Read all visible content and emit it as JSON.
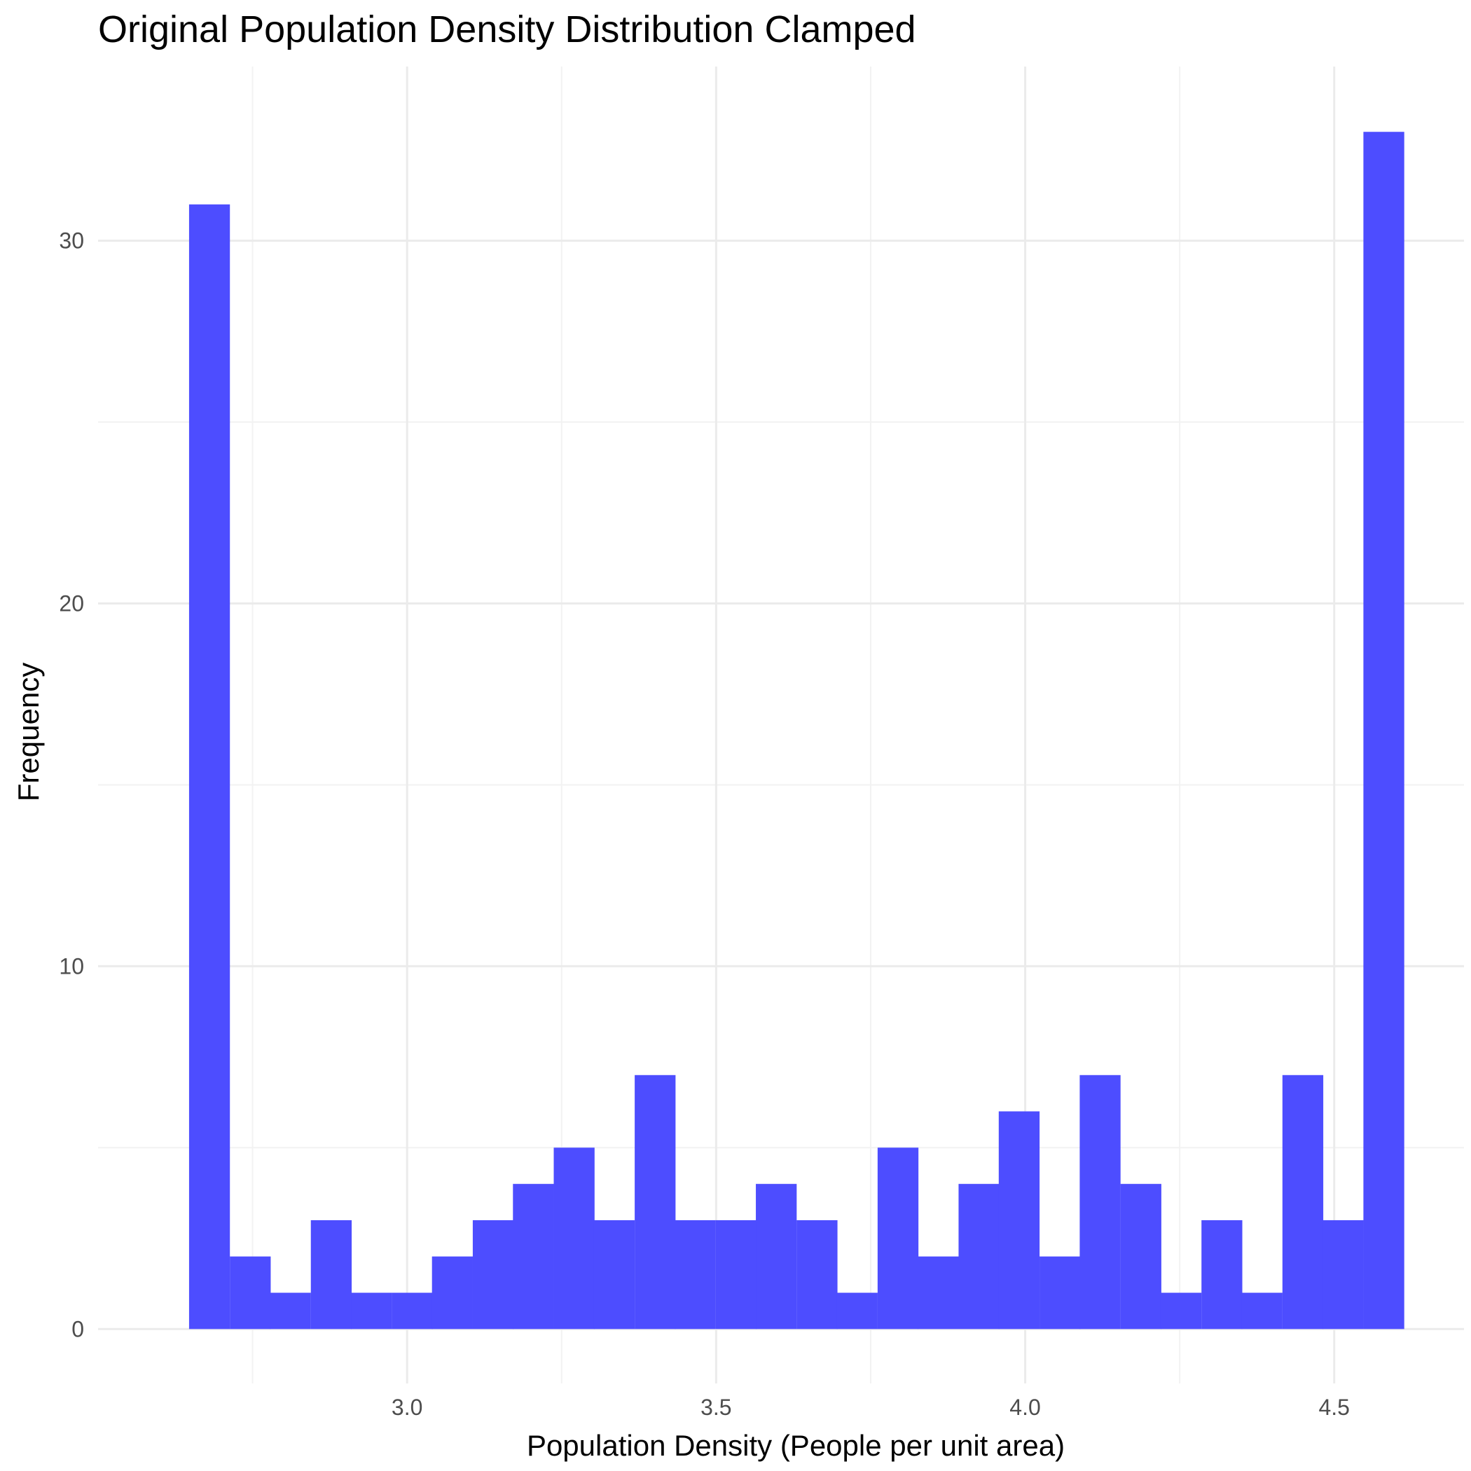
{
  "chart_data": {
    "type": "bar",
    "title": "Original Population Density Distribution Clamped",
    "xlabel": "Population Density (People per unit area)",
    "ylabel": "Frequency",
    "bar_color": "#4d4dff",
    "grid": true,
    "legend": "none",
    "xlim": [
      2.5,
      4.71
    ],
    "ylim": [
      -1.5,
      34.8
    ],
    "x_ticks": [
      {
        "value": 3.0,
        "label": "3.0"
      },
      {
        "value": 3.5,
        "label": "3.5"
      },
      {
        "value": 4.0,
        "label": "4.0"
      },
      {
        "value": 4.5,
        "label": "4.5"
      }
    ],
    "y_ticks": [
      {
        "value": 0,
        "label": "0"
      },
      {
        "value": 10,
        "label": "10"
      },
      {
        "value": 20,
        "label": "20"
      },
      {
        "value": 30,
        "label": "30"
      }
    ],
    "bin_width": 0.0655,
    "bins": [
      {
        "x": 2.68,
        "count": 31
      },
      {
        "x": 2.746,
        "count": 2
      },
      {
        "x": 2.811,
        "count": 1
      },
      {
        "x": 2.877,
        "count": 3
      },
      {
        "x": 2.942,
        "count": 1
      },
      {
        "x": 3.008,
        "count": 1
      },
      {
        "x": 3.073,
        "count": 2
      },
      {
        "x": 3.139,
        "count": 3
      },
      {
        "x": 3.204,
        "count": 4
      },
      {
        "x": 3.27,
        "count": 5
      },
      {
        "x": 3.335,
        "count": 3
      },
      {
        "x": 3.401,
        "count": 7
      },
      {
        "x": 3.466,
        "count": 3
      },
      {
        "x": 3.532,
        "count": 3
      },
      {
        "x": 3.597,
        "count": 4
      },
      {
        "x": 3.663,
        "count": 3
      },
      {
        "x": 3.728,
        "count": 1
      },
      {
        "x": 3.794,
        "count": 5
      },
      {
        "x": 3.859,
        "count": 2
      },
      {
        "x": 3.925,
        "count": 4
      },
      {
        "x": 3.99,
        "count": 6
      },
      {
        "x": 4.056,
        "count": 2
      },
      {
        "x": 4.121,
        "count": 7
      },
      {
        "x": 4.187,
        "count": 4
      },
      {
        "x": 4.252,
        "count": 1
      },
      {
        "x": 4.318,
        "count": 3
      },
      {
        "x": 4.383,
        "count": 1
      },
      {
        "x": 4.449,
        "count": 7
      },
      {
        "x": 4.514,
        "count": 3
      },
      {
        "x": 4.58,
        "count": 33
      }
    ]
  }
}
